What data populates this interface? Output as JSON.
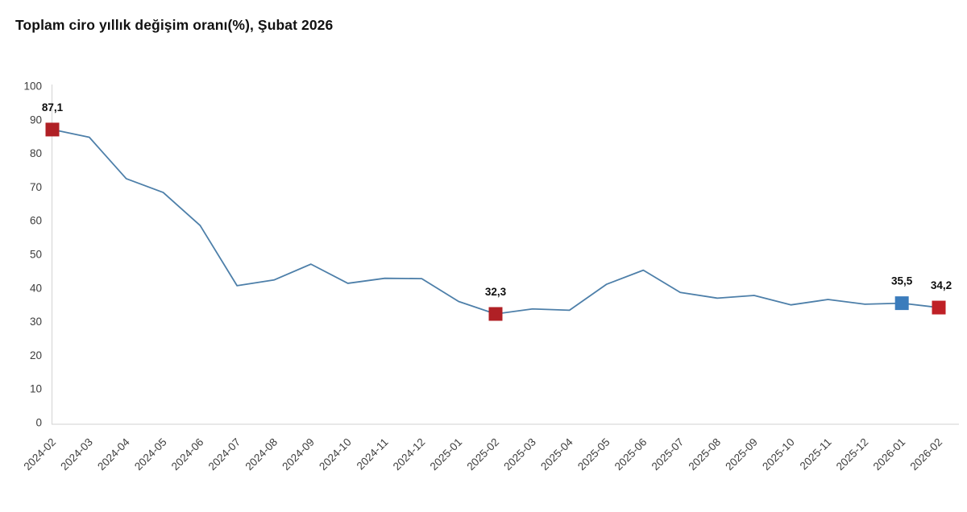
{
  "chart_data": {
    "type": "line",
    "title": "Toplam ciro yıllık değişim oranı(%), Şubat 2026",
    "categories": [
      "2024-02",
      "2024-03",
      "2024-04",
      "2024-05",
      "2024-06",
      "2024-07",
      "2024-08",
      "2024-09",
      "2024-10",
      "2024-11",
      "2024-12",
      "2025-01",
      "2025-02",
      "2025-03",
      "2025-04",
      "2025-05",
      "2025-06",
      "2025-07",
      "2025-08",
      "2025-09",
      "2025-10",
      "2025-11",
      "2025-12",
      "2026-01",
      "2026-02"
    ],
    "series": [
      {
        "name": "Toplam ciro yıllık değişim oranı (%)",
        "values": [
          87.1,
          84.8,
          72.5,
          68.4,
          58.6,
          40.7,
          42.4,
          47.1,
          41.4,
          42.9,
          42.8,
          36.0,
          32.3,
          33.8,
          33.4,
          41.1,
          45.3,
          38.7,
          37.0,
          37.8,
          35.0,
          36.6,
          35.2,
          35.5,
          34.2
        ]
      }
    ],
    "annotations": [
      {
        "index": 0,
        "label": "87,1",
        "marker_color": "#b02025"
      },
      {
        "index": 12,
        "label": "32,3",
        "marker_color": "#b02025"
      },
      {
        "index": 23,
        "label": "35,5",
        "marker_color": "#3b7cbc"
      },
      {
        "index": 24,
        "label": "34,2",
        "marker_color": "#bf2026"
      }
    ],
    "xlabel": "",
    "ylabel": "",
    "ylim": [
      0,
      100
    ],
    "yticks": [
      0,
      10,
      20,
      30,
      40,
      50,
      60,
      70,
      80,
      90,
      100
    ],
    "grid": false,
    "legend_position": "none",
    "line_color": "#4d7fa9",
    "axis_color": "#d9d9d9",
    "tick_label_color": "#3d3d3d"
  }
}
